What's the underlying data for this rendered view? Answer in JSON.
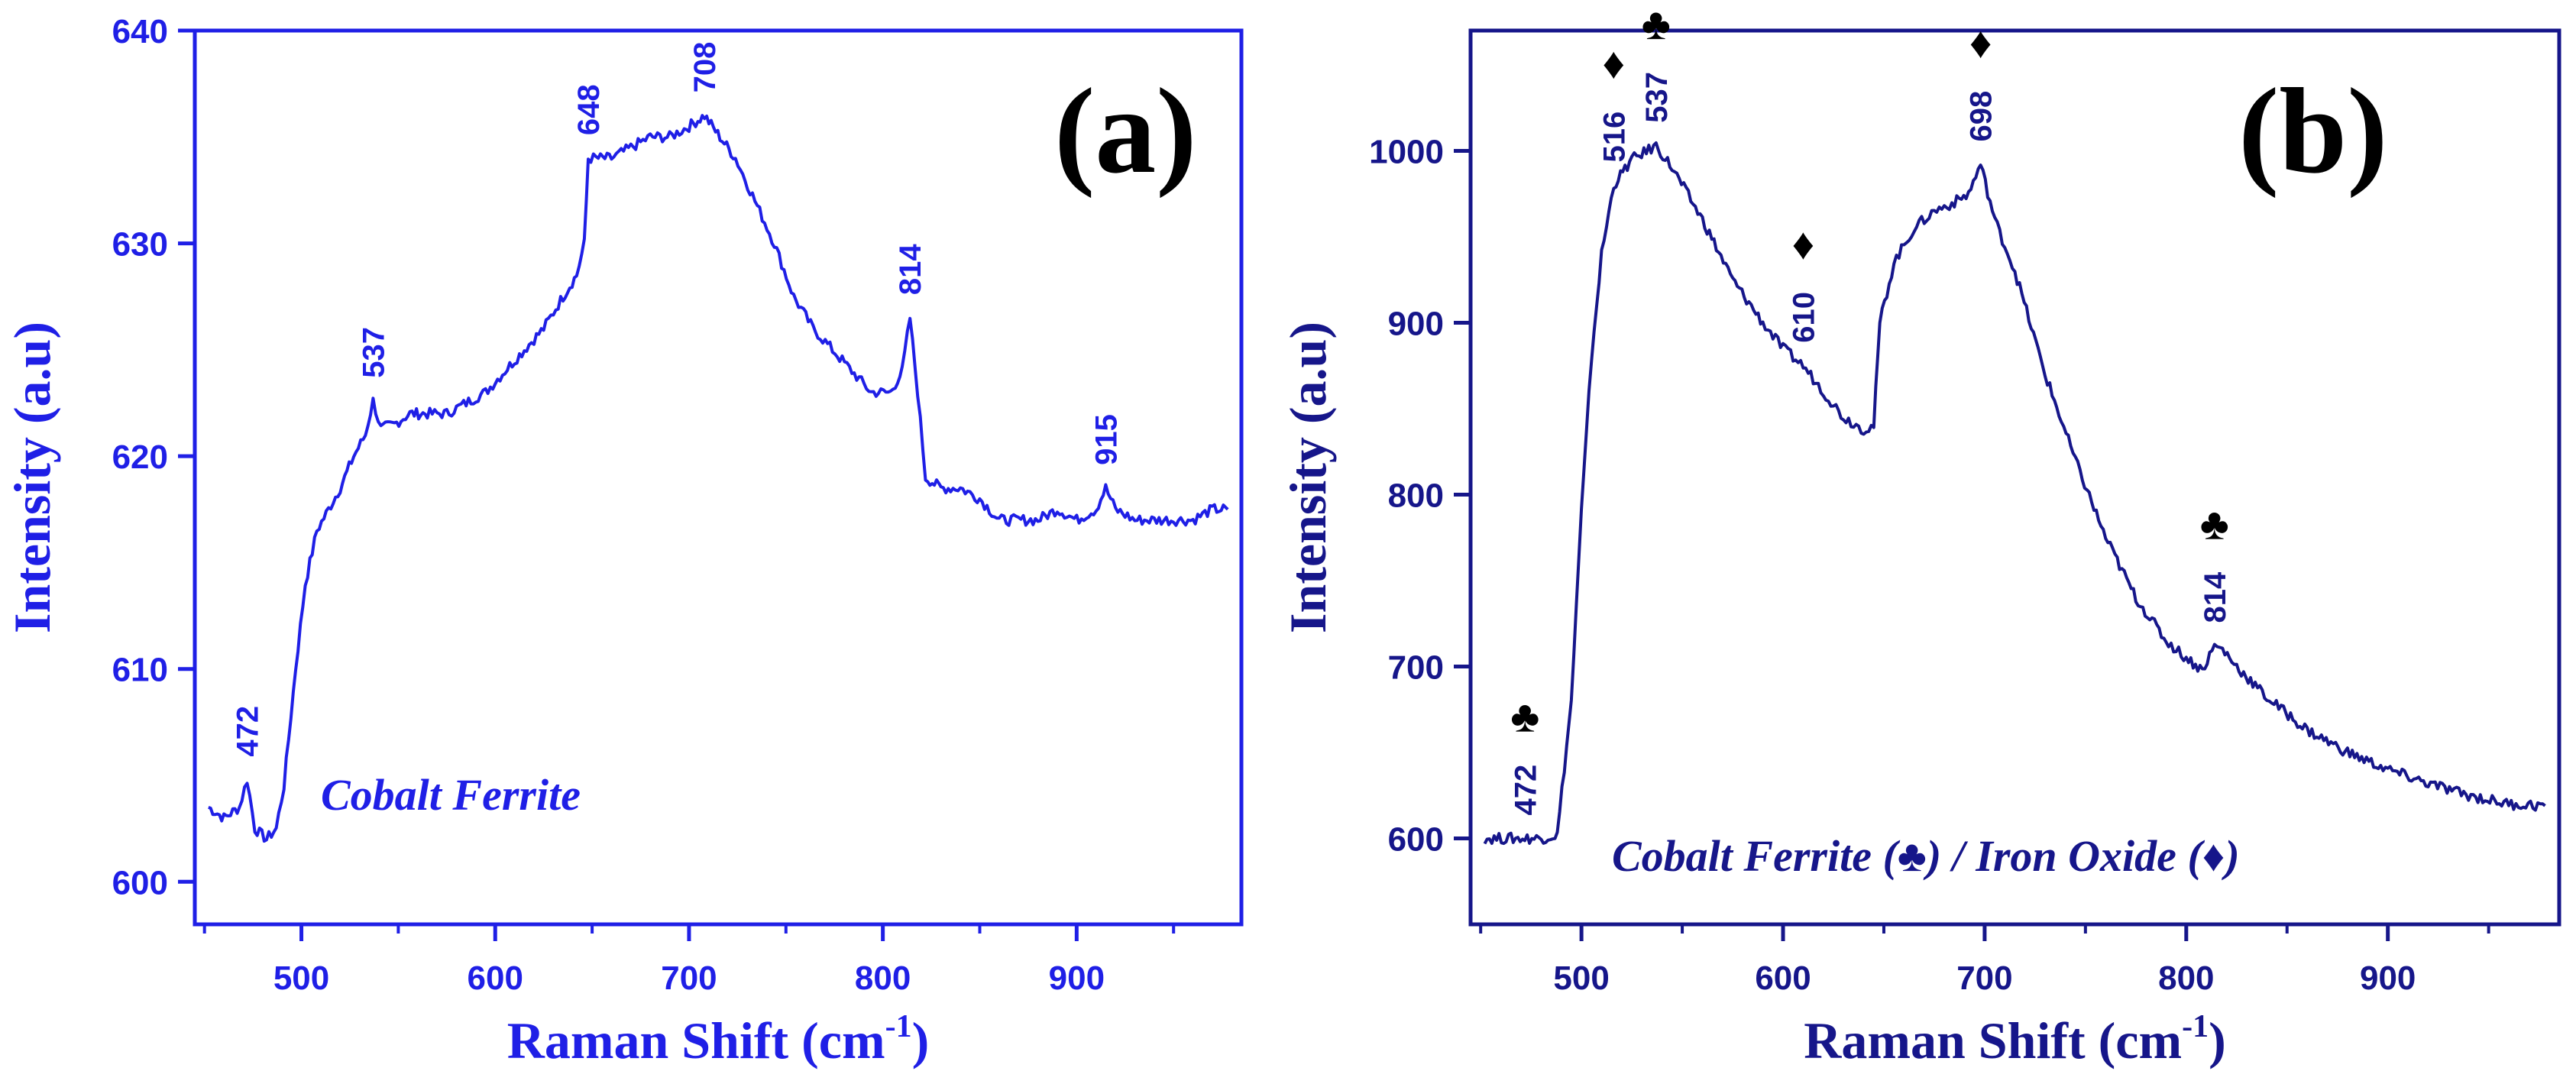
{
  "figure": {
    "panels": [
      {
        "panel_label": "(a)",
        "annotation": "Cobalt Ferrite",
        "color": "#1f1fe6"
      },
      {
        "panel_label": "(b)",
        "annotation_prefix": "Cobalt Ferrite (",
        "annotation_mid": ") / Iron Oxide (",
        "annotation_suffix": ")",
        "color": "#16168a",
        "marker_color": "#000000"
      }
    ]
  },
  "chart_data": [
    {
      "type": "line",
      "title": "(a)",
      "xlabel": "Raman Shift (cm",
      "xlabel_sup": "-1",
      "xlabel_end": ")",
      "ylabel": "Intensity (a.u)",
      "xlim": [
        445,
        985
      ],
      "ylim": [
        598,
        640
      ],
      "xticks": [
        500,
        600,
        700,
        800,
        900
      ],
      "yticks": [
        600,
        610,
        620,
        630,
        640
      ],
      "grid": false,
      "legend": "none",
      "series": [
        {
          "name": "Cobalt Ferrite",
          "x": [
            452,
            460,
            468,
            472,
            476,
            482,
            487,
            491,
            497,
            502,
            508,
            514,
            520,
            527,
            533,
            537,
            541,
            548,
            556,
            565,
            575,
            585,
            595,
            605,
            615,
            625,
            635,
            642,
            646,
            648,
            652,
            660,
            670,
            680,
            690,
            700,
            708,
            716,
            724,
            734,
            744,
            754,
            764,
            774,
            784,
            794,
            804,
            810,
            814,
            818,
            822,
            830,
            840,
            850,
            860,
            870,
            880,
            890,
            900,
            910,
            915,
            920,
            930,
            940,
            950,
            960,
            970,
            978
          ],
          "y": [
            603.5,
            603,
            603.5,
            604.8,
            602.5,
            602,
            602.5,
            604.5,
            610,
            614,
            616.5,
            617.5,
            618.5,
            620,
            621,
            622.6,
            621.3,
            621.5,
            622,
            622,
            622,
            622.5,
            623,
            624,
            625,
            626,
            627.5,
            628.5,
            630,
            634,
            634,
            634,
            634.5,
            635,
            635,
            635.5,
            636,
            635,
            634,
            632,
            630,
            627.5,
            626,
            625,
            624,
            623,
            623,
            624,
            626.5,
            623,
            619,
            618.5,
            618.5,
            618,
            617,
            617,
            617,
            617.5,
            617,
            617.5,
            618.5,
            617.5,
            617,
            617,
            617,
            617,
            617.5,
            617.5
          ]
        }
      ],
      "annotations": [
        {
          "x": 472,
          "label": "472"
        },
        {
          "x": 537,
          "label": "537"
        },
        {
          "x": 648,
          "label": "648"
        },
        {
          "x": 708,
          "label": "708"
        },
        {
          "x": 814,
          "label": "814"
        },
        {
          "x": 915,
          "label": "915"
        }
      ]
    },
    {
      "type": "line",
      "title": "(b)",
      "xlabel": "Raman Shift (cm",
      "xlabel_sup": "-1",
      "xlabel_end": ")",
      "ylabel": "Intensity (a.u)",
      "xlim": [
        445,
        985
      ],
      "ylim": [
        550,
        1070
      ],
      "xticks": [
        500,
        600,
        700,
        800,
        900
      ],
      "yticks": [
        600,
        700,
        800,
        900,
        1000
      ],
      "grid": false,
      "legend": "none",
      "series": [
        {
          "name": "Cobalt Ferrite / Iron Oxide",
          "x": [
            452,
            465,
            480,
            488,
            495,
            500,
            505,
            510,
            516,
            525,
            537,
            545,
            560,
            575,
            590,
            600,
            610,
            620,
            630,
            640,
            645,
            648,
            655,
            665,
            675,
            685,
            692,
            698,
            705,
            715,
            730,
            745,
            760,
            775,
            790,
            800,
            808,
            814,
            818,
            825,
            840,
            860,
            880,
            900,
            920,
            940,
            960,
            978
          ],
          "y": [
            600,
            600,
            600,
            602,
            680,
            790,
            880,
            940,
            980,
            995,
            1003,
            990,
            960,
            925,
            900,
            885,
            875,
            860,
            845,
            838,
            840,
            900,
            935,
            955,
            965,
            970,
            975,
            992,
            960,
            930,
            870,
            820,
            775,
            740,
            715,
            705,
            698,
            712,
            710,
            700,
            682,
            663,
            650,
            640,
            632,
            625,
            620,
            619
          ]
        }
      ],
      "annotations": [
        {
          "x": 472,
          "label": "472",
          "marker": "club"
        },
        {
          "x": 516,
          "label": "516",
          "marker": "diamond"
        },
        {
          "x": 537,
          "label": "537",
          "marker": "club"
        },
        {
          "x": 610,
          "label": "610",
          "marker": "diamond"
        },
        {
          "x": 698,
          "label": "698",
          "marker": "diamond"
        },
        {
          "x": 814,
          "label": "814",
          "marker": "club"
        }
      ]
    }
  ]
}
